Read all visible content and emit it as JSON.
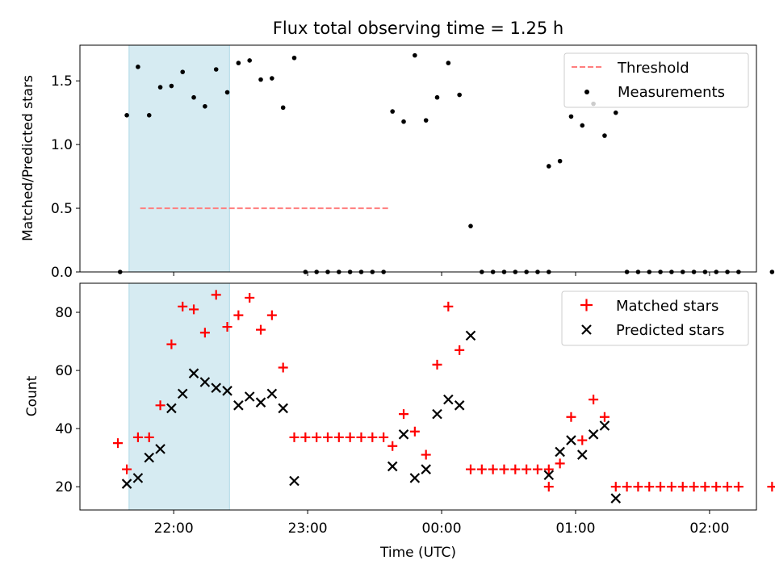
{
  "figure": {
    "title": "Flux total observing time = 1.25 h",
    "xlabel": "Time (UTC)",
    "colors": {
      "shade": "#add8e6",
      "threshold": "#ff7f7f",
      "matched": "#ff0000",
      "predicted": "#000000",
      "measurement": "#000000"
    }
  },
  "chart_data": [
    {
      "type": "scatter",
      "ylabel": "Matched/Predicted stars",
      "xlim": [
        21.3,
        2.35
      ],
      "ylim": [
        0,
        1.78
      ],
      "xticks": [
        "22:00",
        "23:00",
        "00:00",
        "01:00",
        "02:00"
      ],
      "yticks": [
        "0.0",
        "0.5",
        "1.0",
        "1.5"
      ],
      "grid": false,
      "legend": {
        "position": "top-right",
        "entries": [
          "Threshold",
          "Measurements"
        ]
      },
      "shaded_region": [
        "21:40",
        "22:25"
      ],
      "threshold": {
        "name": "Threshold",
        "y": 0.5,
        "x": [
          "21:45",
          "23:37"
        ]
      },
      "series": [
        {
          "name": "Measurements",
          "points": [
            [
              "21:36",
              0.0
            ],
            [
              "21:39",
              1.23
            ],
            [
              "21:44",
              1.61
            ],
            [
              "21:49",
              1.23
            ],
            [
              "21:54",
              1.45
            ],
            [
              "21:59",
              1.46
            ],
            [
              "22:04",
              1.57
            ],
            [
              "22:09",
              1.37
            ],
            [
              "22:14",
              1.3
            ],
            [
              "22:19",
              1.59
            ],
            [
              "22:24",
              1.41
            ],
            [
              "22:29",
              1.64
            ],
            [
              "22:34",
              1.66
            ],
            [
              "22:39",
              1.51
            ],
            [
              "22:44",
              1.52
            ],
            [
              "22:49",
              1.29
            ],
            [
              "22:54",
              1.68
            ],
            [
              "22:59",
              0.0
            ],
            [
              "23:04",
              0.0
            ],
            [
              "23:09",
              0.0
            ],
            [
              "23:14",
              0.0
            ],
            [
              "23:19",
              0.0
            ],
            [
              "23:24",
              0.0
            ],
            [
              "23:29",
              0.0
            ],
            [
              "23:34",
              0.0
            ],
            [
              "23:38",
              1.26
            ],
            [
              "23:43",
              1.18
            ],
            [
              "23:48",
              1.7
            ],
            [
              "23:53",
              1.19
            ],
            [
              "23:58",
              1.37
            ],
            [
              "00:03",
              1.64
            ],
            [
              "00:08",
              1.39
            ],
            [
              "00:13",
              0.36
            ],
            [
              "00:18",
              0.0
            ],
            [
              "00:23",
              0.0
            ],
            [
              "00:28",
              0.0
            ],
            [
              "00:33",
              0.0
            ],
            [
              "00:38",
              0.0
            ],
            [
              "00:43",
              0.0
            ],
            [
              "00:48",
              0.0
            ],
            [
              "00:48",
              0.83
            ],
            [
              "00:53",
              0.87
            ],
            [
              "00:58",
              1.22
            ],
            [
              "01:03",
              1.15
            ],
            [
              "01:08",
              1.32
            ],
            [
              "01:13",
              1.07
            ],
            [
              "01:18",
              1.25
            ],
            [
              "01:23",
              0.0
            ],
            [
              "01:28",
              0.0
            ],
            [
              "01:33",
              0.0
            ],
            [
              "01:38",
              0.0
            ],
            [
              "01:43",
              0.0
            ],
            [
              "01:48",
              0.0
            ],
            [
              "01:53",
              0.0
            ],
            [
              "01:58",
              0.0
            ],
            [
              "02:03",
              0.0
            ],
            [
              "02:08",
              0.0
            ],
            [
              "02:13",
              0.0
            ],
            [
              "02:28",
              0.0
            ],
            [
              "02:31",
              0.0
            ]
          ]
        }
      ]
    },
    {
      "type": "scatter",
      "ylabel": "Count",
      "xlim": [
        21.3,
        2.35
      ],
      "ylim": [
        12,
        90
      ],
      "xticks": [
        "22:00",
        "23:00",
        "00:00",
        "01:00",
        "02:00"
      ],
      "yticks": [
        "20",
        "40",
        "60",
        "80"
      ],
      "grid": false,
      "legend": {
        "position": "top-right",
        "entries": [
          "Matched stars",
          "Predicted stars"
        ]
      },
      "shaded_region": [
        "21:40",
        "22:25"
      ],
      "series": [
        {
          "name": "Matched stars",
          "marker": "plus",
          "points": [
            [
              "21:35",
              35
            ],
            [
              "21:39",
              26
            ],
            [
              "21:44",
              37
            ],
            [
              "21:49",
              37
            ],
            [
              "21:54",
              48
            ],
            [
              "21:59",
              69
            ],
            [
              "22:04",
              82
            ],
            [
              "22:09",
              81
            ],
            [
              "22:14",
              73
            ],
            [
              "22:19",
              86
            ],
            [
              "22:24",
              75
            ],
            [
              "22:29",
              79
            ],
            [
              "22:34",
              85
            ],
            [
              "22:39",
              74
            ],
            [
              "22:44",
              79
            ],
            [
              "22:49",
              61
            ],
            [
              "22:54",
              37
            ],
            [
              "22:59",
              37
            ],
            [
              "23:04",
              37
            ],
            [
              "23:09",
              37
            ],
            [
              "23:14",
              37
            ],
            [
              "23:19",
              37
            ],
            [
              "23:24",
              37
            ],
            [
              "23:29",
              37
            ],
            [
              "23:34",
              37
            ],
            [
              "23:38",
              34
            ],
            [
              "23:43",
              45
            ],
            [
              "23:48",
              39
            ],
            [
              "23:53",
              31
            ],
            [
              "23:58",
              62
            ],
            [
              "00:03",
              82
            ],
            [
              "00:08",
              67
            ],
            [
              "00:13",
              26
            ],
            [
              "00:18",
              26
            ],
            [
              "00:23",
              26
            ],
            [
              "00:28",
              26
            ],
            [
              "00:33",
              26
            ],
            [
              "00:38",
              26
            ],
            [
              "00:43",
              26
            ],
            [
              "00:48",
              26
            ],
            [
              "00:48",
              20
            ],
            [
              "00:53",
              28
            ],
            [
              "00:58",
              44
            ],
            [
              "01:03",
              36
            ],
            [
              "01:08",
              50
            ],
            [
              "01:13",
              44
            ],
            [
              "01:18",
              20
            ],
            [
              "01:23",
              20
            ],
            [
              "01:28",
              20
            ],
            [
              "01:33",
              20
            ],
            [
              "01:38",
              20
            ],
            [
              "01:43",
              20
            ],
            [
              "01:48",
              20
            ],
            [
              "01:53",
              20
            ],
            [
              "01:58",
              20
            ],
            [
              "02:03",
              20
            ],
            [
              "02:08",
              20
            ],
            [
              "02:13",
              20
            ],
            [
              "02:28",
              20
            ],
            [
              "02:31",
              20
            ]
          ]
        },
        {
          "name": "Predicted stars",
          "marker": "x",
          "points": [
            [
              "21:39",
              21
            ],
            [
              "21:44",
              23
            ],
            [
              "21:49",
              30
            ],
            [
              "21:54",
              33
            ],
            [
              "21:59",
              47
            ],
            [
              "22:04",
              52
            ],
            [
              "22:09",
              59
            ],
            [
              "22:14",
              56
            ],
            [
              "22:19",
              54
            ],
            [
              "22:24",
              53
            ],
            [
              "22:29",
              48
            ],
            [
              "22:34",
              51
            ],
            [
              "22:39",
              49
            ],
            [
              "22:44",
              52
            ],
            [
              "22:49",
              47
            ],
            [
              "22:54",
              22
            ],
            [
              "23:38",
              27
            ],
            [
              "23:43",
              38
            ],
            [
              "23:48",
              23
            ],
            [
              "23:53",
              26
            ],
            [
              "23:58",
              45
            ],
            [
              "00:03",
              50
            ],
            [
              "00:08",
              48
            ],
            [
              "00:13",
              72
            ],
            [
              "00:48",
              24
            ],
            [
              "00:53",
              32
            ],
            [
              "00:58",
              36
            ],
            [
              "01:03",
              31
            ],
            [
              "01:08",
              38
            ],
            [
              "01:13",
              41
            ],
            [
              "01:18",
              16
            ]
          ]
        }
      ]
    }
  ]
}
